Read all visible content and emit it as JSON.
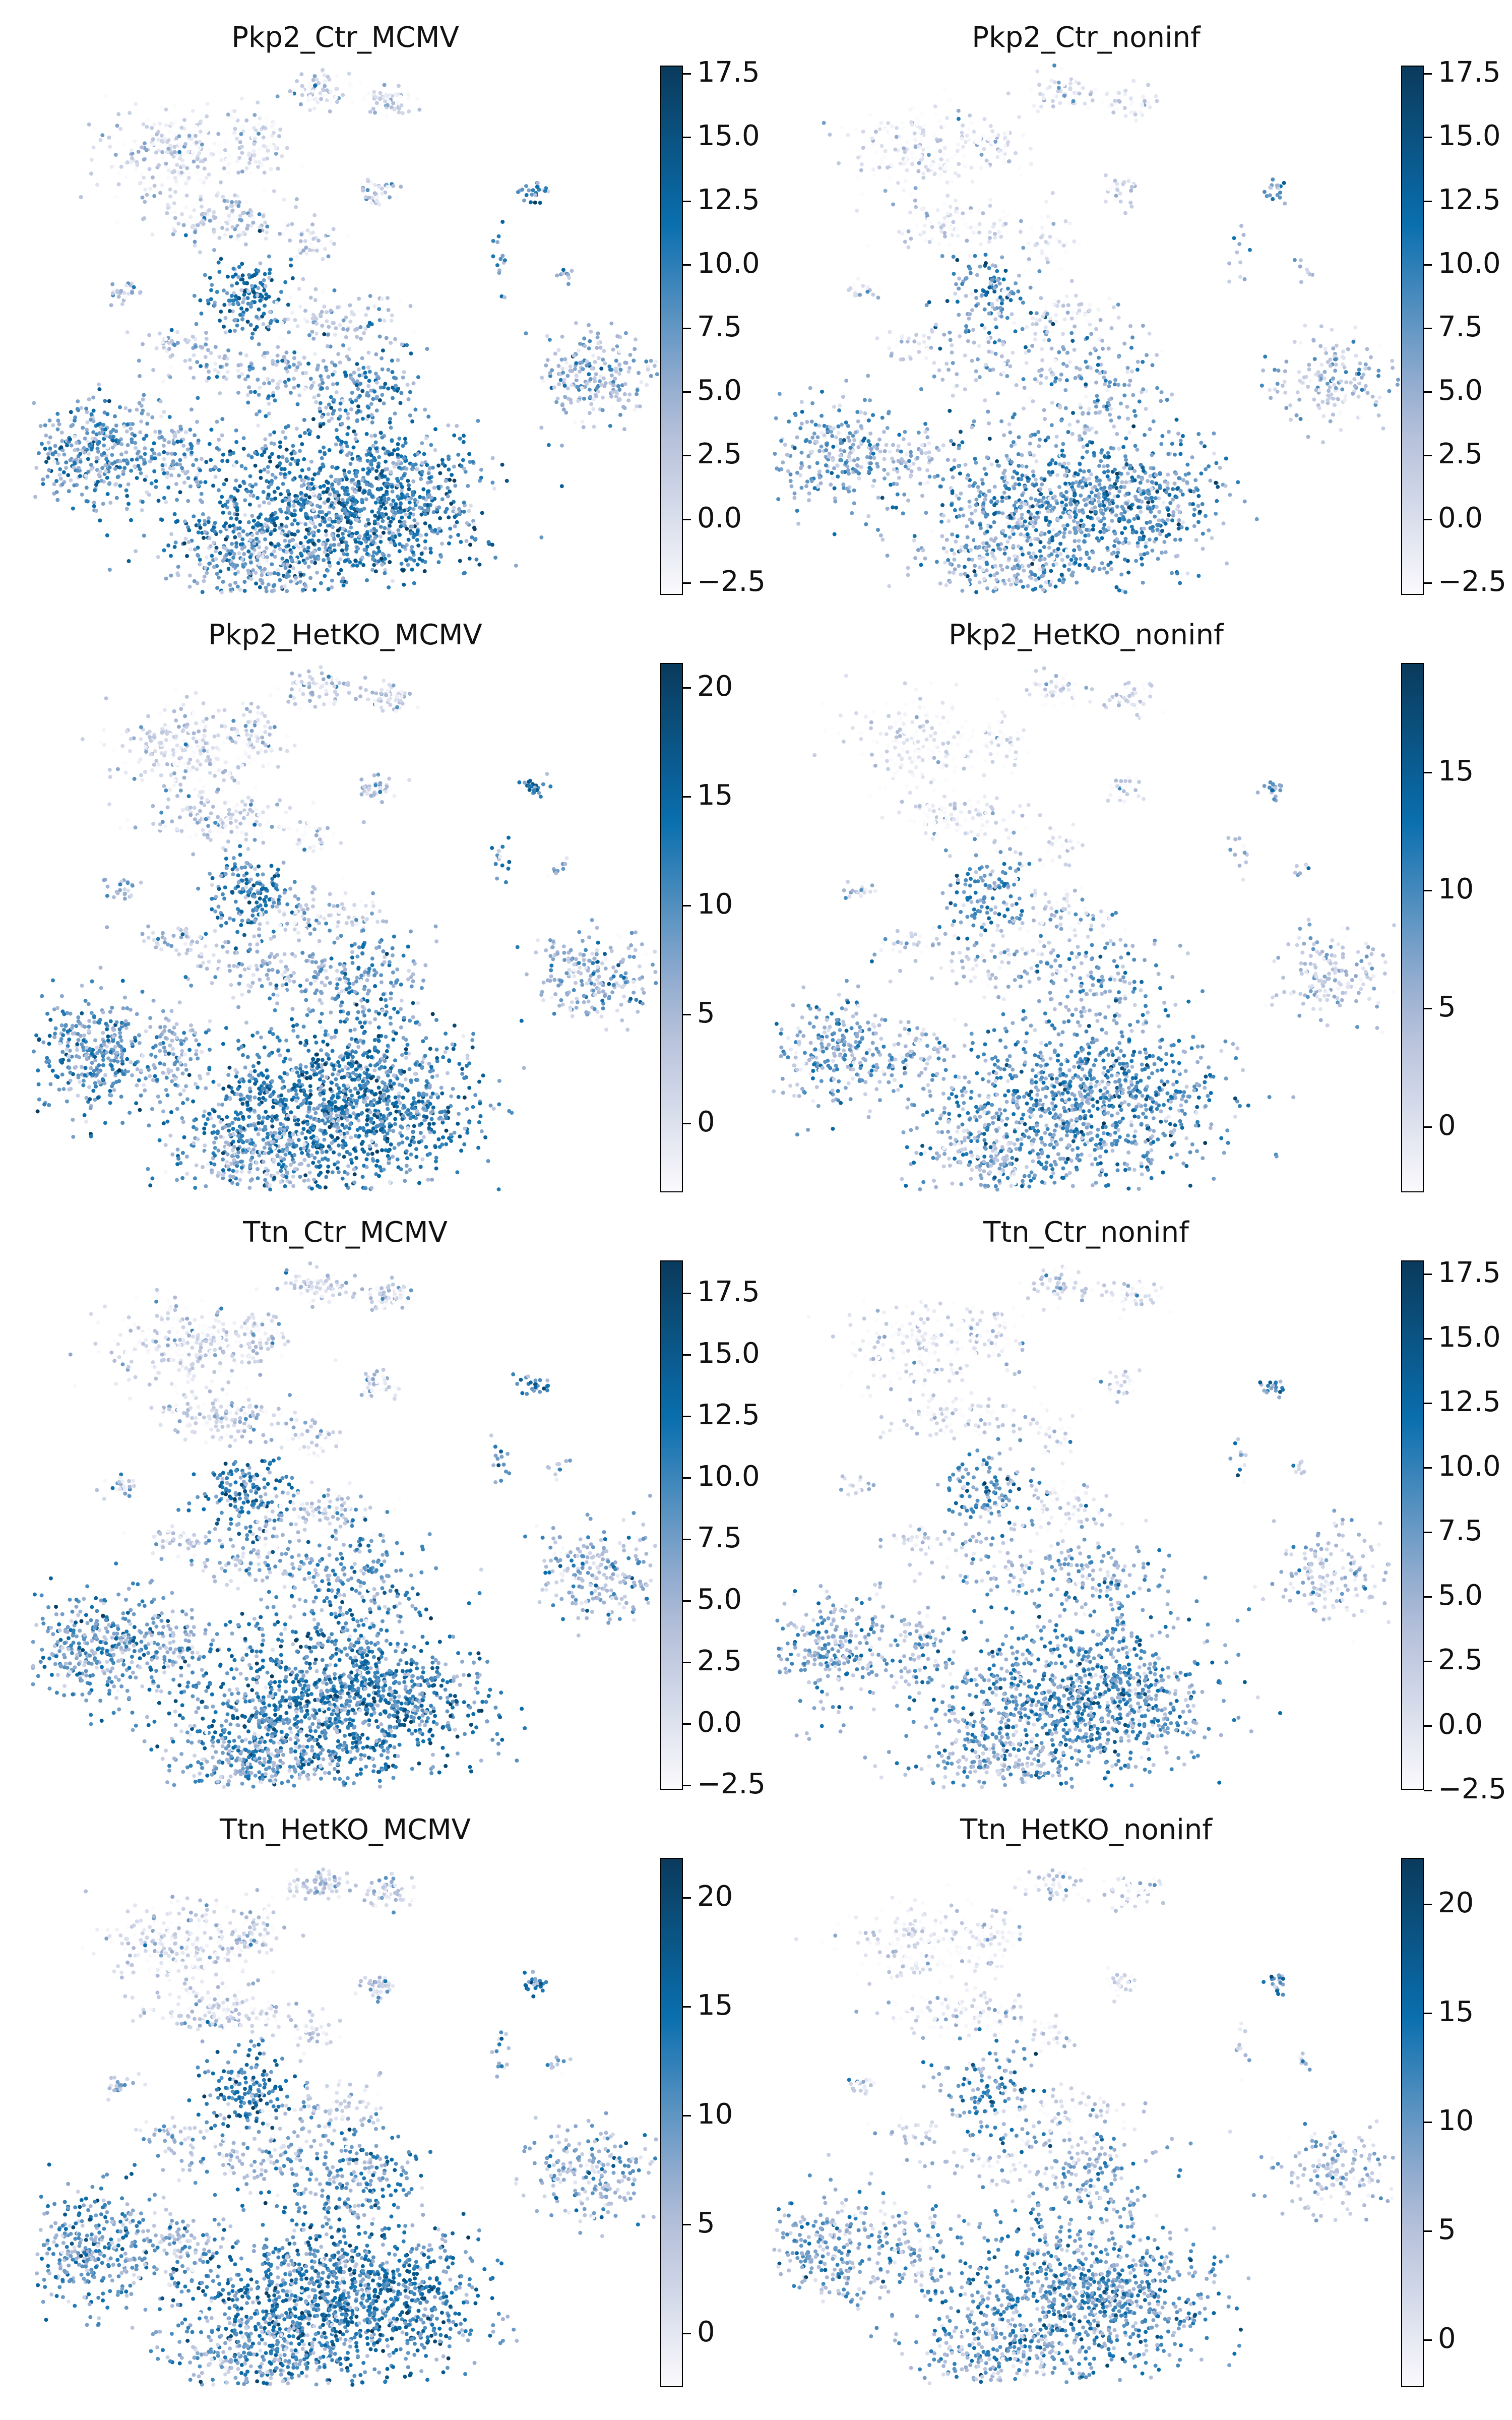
{
  "colormap": {
    "low": "#fbfafd",
    "mid": "#a9b6d4",
    "high": "#0a3a5c",
    "accent": "#0a6fae"
  },
  "panels": [
    {
      "title": "Pkp2_Ctr_MCMV",
      "vmin": -3.0,
      "vmax": 17.8,
      "ticks": [
        "-2.5",
        "0.0",
        "2.5",
        "5.0",
        "7.5",
        "10.0",
        "12.5",
        "15.0",
        "17.5"
      ],
      "tick_values": [
        -2.5,
        0,
        2.5,
        5,
        7.5,
        10,
        12.5,
        15,
        17.5
      ]
    },
    {
      "title": "Pkp2_Ctr_noninf",
      "vmin": -3.0,
      "vmax": 17.8,
      "ticks": [
        "-2.5",
        "0.0",
        "2.5",
        "5.0",
        "7.5",
        "10.0",
        "12.5",
        "15.0",
        "17.5"
      ],
      "tick_values": [
        -2.5,
        0,
        2.5,
        5,
        7.5,
        10,
        12.5,
        15,
        17.5
      ]
    },
    {
      "title": "Pkp2_HetKO_MCMV",
      "vmin": -3.2,
      "vmax": 21.1,
      "ticks": [
        "0",
        "5",
        "10",
        "15",
        "20"
      ],
      "tick_values": [
        0,
        5,
        10,
        15,
        20
      ]
    },
    {
      "title": "Pkp2_HetKO_noninf",
      "vmin": -2.8,
      "vmax": 19.6,
      "ticks": [
        "0",
        "5",
        "10",
        "15"
      ],
      "tick_values": [
        0,
        5,
        10,
        15
      ]
    },
    {
      "title": "Ttn_Ctr_MCMV",
      "vmin": -2.7,
      "vmax": 18.8,
      "ticks": [
        "-2.5",
        "0.0",
        "2.5",
        "5.0",
        "7.5",
        "10.0",
        "12.5",
        "15.0",
        "17.5"
      ],
      "tick_values": [
        -2.5,
        0,
        2.5,
        5,
        7.5,
        10,
        12.5,
        15,
        17.5
      ]
    },
    {
      "title": "Ttn_Ctr_noninf",
      "vmin": -2.5,
      "vmax": 18.0,
      "ticks": [
        "-2.5",
        "0.0",
        "2.5",
        "5.0",
        "7.5",
        "10.0",
        "12.5",
        "15.0",
        "17.5"
      ],
      "tick_values": [
        -2.5,
        0,
        2.5,
        5,
        7.5,
        10,
        12.5,
        15,
        17.5
      ]
    },
    {
      "title": "Ttn_HetKO_MCMV",
      "vmin": -2.5,
      "vmax": 21.8,
      "ticks": [
        "0",
        "5",
        "10",
        "15",
        "20"
      ],
      "tick_values": [
        0,
        5,
        10,
        15,
        20
      ]
    },
    {
      "title": "Ttn_HetKO_noninf",
      "vmin": -2.2,
      "vmax": 22.1,
      "ticks": [
        "0",
        "5",
        "10",
        "15",
        "20"
      ],
      "tick_values": [
        0,
        5,
        10,
        15,
        20
      ]
    }
  ],
  "chart_data": {
    "type": "scatter",
    "plot_kind": "UMAP embedding colored by score",
    "grid": false,
    "axes_visible": false,
    "legend": "colorbar-right"
  }
}
